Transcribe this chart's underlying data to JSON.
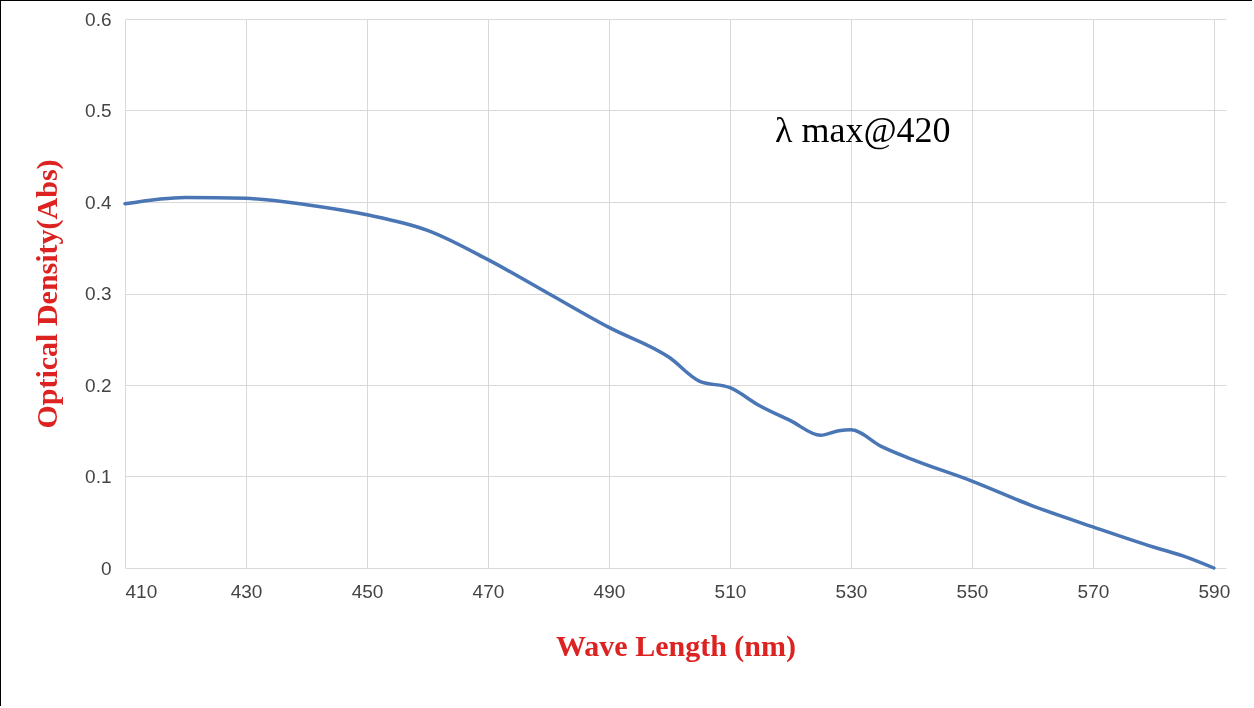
{
  "chart_data": {
    "type": "line",
    "xlabel": "Wave Length (nm)",
    "ylabel": "Optical Density(Abs)",
    "x": [
      410,
      420,
      430,
      440,
      450,
      460,
      470,
      480,
      490,
      500,
      505,
      510,
      515,
      520,
      525,
      528,
      530,
      535,
      540,
      550,
      560,
      570,
      580,
      585,
      590
    ],
    "series": [
      {
        "color": "#4a76b5",
        "values": [
          0.398,
          0.405,
          0.404,
          0.397,
          0.386,
          0.369,
          0.337,
          0.3,
          0.263,
          0.23,
          0.204,
          0.197,
          0.177,
          0.161,
          0.145,
          0.15,
          0.151,
          0.133,
          0.119,
          0.095,
          0.068,
          0.045,
          0.023,
          0.013,
          0.0
        ]
      }
    ],
    "xlim": [
      410,
      592
    ],
    "xticks": [
      410,
      430,
      450,
      470,
      490,
      510,
      530,
      550,
      570,
      590
    ],
    "ylim": [
      0,
      0.6
    ],
    "yticks": [
      {
        "value": 0,
        "label": "0"
      },
      0.1,
      0.2,
      0.3,
      0.4,
      0.5,
      0.6
    ],
    "grid": true,
    "marker": "none",
    "line_style": "solid",
    "annotations": [
      "λ  max@420"
    ]
  }
}
